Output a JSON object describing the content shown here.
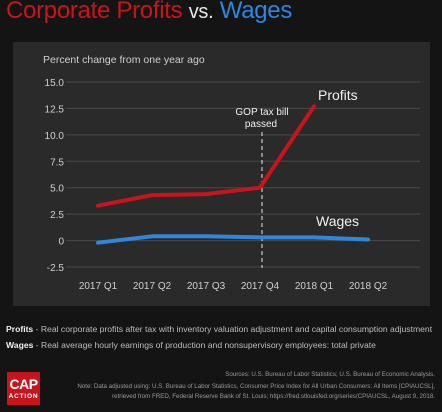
{
  "header": {
    "title_part1": "Corporate Profits",
    "title_part2": "vs.",
    "title_part3": "Wages"
  },
  "chart_data": {
    "type": "line",
    "title": "Corporate Profits vs. Wages",
    "ylabel": "Percent change from one year ago",
    "categories": [
      "2017 Q1",
      "2017 Q2",
      "2017 Q3",
      "2017 Q4",
      "2018 Q1",
      "2018 Q2"
    ],
    "yticks": [
      "15.0",
      "12.5",
      "10.0",
      "7.5",
      "5.0",
      "2.5",
      "0",
      "-2.5"
    ],
    "ylim": [
      -2.5,
      15.0
    ],
    "grid": true,
    "series": [
      {
        "name": "Profits",
        "color": "#c8141c",
        "x": [
          0,
          1,
          2,
          3,
          4
        ],
        "values": [
          3.3,
          4.3,
          4.4,
          5.0,
          12.7
        ]
      },
      {
        "name": "Wages",
        "color": "#2e86de",
        "x": [
          0,
          1,
          2,
          3,
          4,
          5
        ],
        "values": [
          -0.2,
          0.4,
          0.4,
          0.3,
          0.3,
          0.1
        ]
      }
    ],
    "annotation": {
      "text_line1": "GOP tax bill",
      "text_line2": "passed",
      "x": 3
    }
  },
  "definitions": {
    "profits_label": "Profits",
    "profits_text": " - Real corporate profits after tax with inventory valuation adjustment and capital consumption adjustment",
    "wages_label": "Wages",
    "wages_text": " - Real average hourly earnings of production and nonsupervisory employees: total private"
  },
  "logo": {
    "line1": "CAP",
    "line2": "ACTION"
  },
  "sources": {
    "line1": "Sources: U.S. Bureau of Labor Statistics; U.S. Bureau of Economic Analysis.",
    "line2": "Note: Data adjusted using: U.S. Bureau of Labor Statistics, Consumer Price Index for All Urban Consumers: All Items [CPIAUCSL],",
    "line3": "retrieved from FRED, Federal Reserve Bank of St. Louis; https://fred.stlouisfed.org/series/CPIAUCSL, August 9, 2018."
  }
}
